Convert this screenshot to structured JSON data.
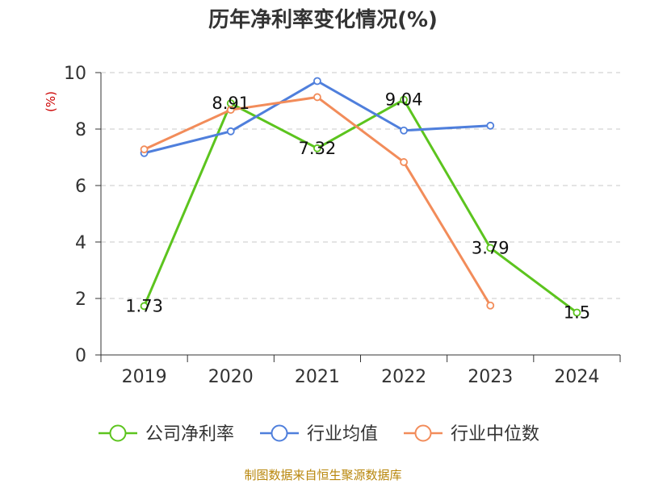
{
  "chart_data": {
    "type": "line",
    "title": "历年净利率变化情况(%)",
    "ylabel": "(%)",
    "categories": [
      "2019",
      "2020",
      "2021",
      "2022",
      "2023",
      "2024"
    ],
    "ylim": [
      0,
      10
    ],
    "yticks": [
      0,
      2,
      4,
      6,
      8,
      10
    ],
    "grid": true,
    "legend_position": "bottom",
    "series": [
      {
        "name": "公司净利率",
        "color": "#5cc41e",
        "values": [
          1.73,
          8.91,
          7.32,
          9.04,
          3.79,
          1.5
        ],
        "labels": [
          "1.73",
          "8.91",
          "7.32",
          "9.04",
          "3.79",
          "1.5"
        ]
      },
      {
        "name": "行业均值",
        "color": "#4f7fdc",
        "values": [
          7.15,
          7.92,
          9.7,
          7.95,
          8.12,
          null
        ]
      },
      {
        "name": "行业中位数",
        "color": "#f28c5a",
        "values": [
          7.28,
          8.68,
          9.13,
          6.83,
          1.75,
          null
        ]
      }
    ]
  },
  "source": "制图数据来自恒生聚源数据库"
}
